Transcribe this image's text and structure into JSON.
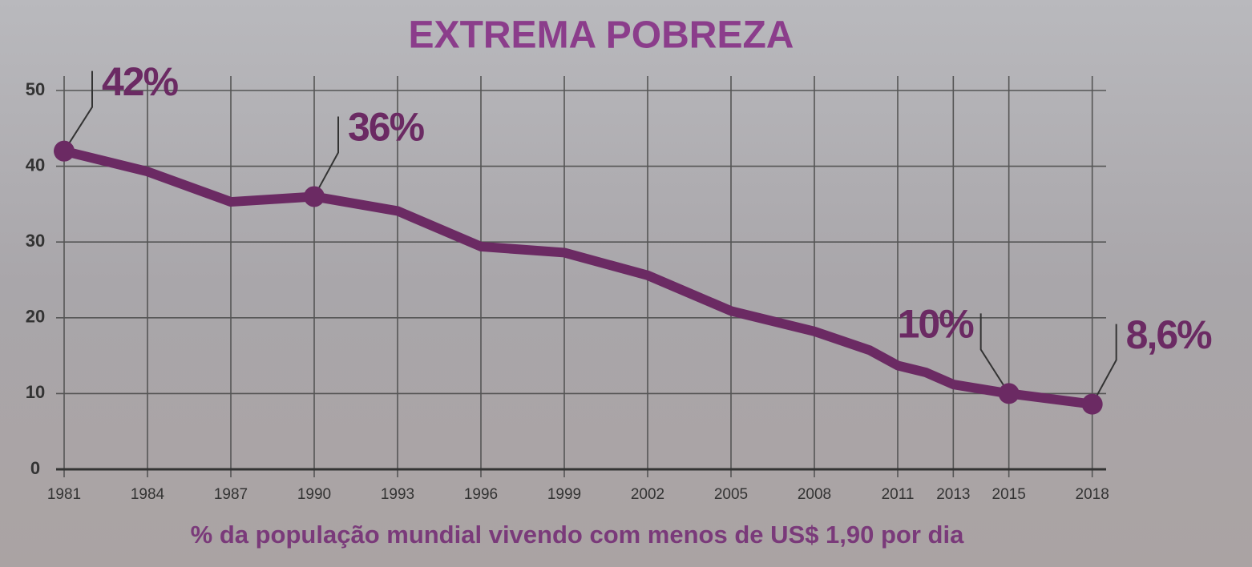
{
  "chart_data": {
    "type": "line",
    "title": "EXTREMA POBREZA",
    "x_label": "% da população mundial vivendo com menos de US$ 1,90 por dia",
    "x": [
      1981,
      1984,
      1987,
      1990,
      1993,
      1996,
      1999,
      2002,
      2005,
      2008,
      2010,
      2011,
      2012,
      2013,
      2015,
      2018
    ],
    "series": [
      {
        "name": "Extrema pobreza",
        "color": "#6b2a63",
        "values": [
          42,
          39.3,
          35.3,
          36,
          34.1,
          29.4,
          28.6,
          25.6,
          20.9,
          18.2,
          15.7,
          13.7,
          12.8,
          11.2,
          10,
          8.6
        ],
        "value_labels": [
          "42%",
          null,
          null,
          "36%",
          null,
          null,
          null,
          null,
          null,
          null,
          null,
          null,
          null,
          null,
          "10%",
          "8,6%"
        ]
      }
    ],
    "xlim": [
      1981,
      2018.5
    ],
    "xticks": [
      1981,
      1984,
      1987,
      1990,
      1993,
      1996,
      1999,
      2002,
      2005,
      2008,
      2011,
      2013,
      2015,
      2018
    ],
    "ylim": [
      0,
      50
    ],
    "yticks": [
      0,
      10,
      20,
      30,
      40,
      50
    ],
    "grid": true
  }
}
